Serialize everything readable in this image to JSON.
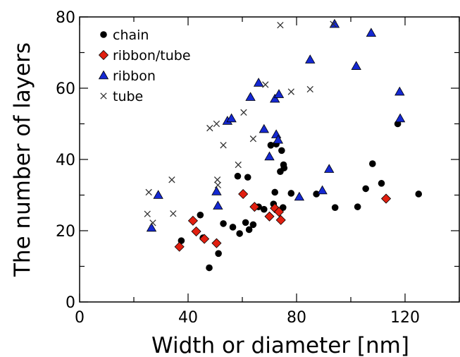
{
  "chart_data": {
    "type": "scatter",
    "xlabel": "Width or diameter [nm]",
    "ylabel": "The number of layers",
    "xlim": [
      0,
      140
    ],
    "ylim": [
      0,
      80
    ],
    "xticks": [
      0,
      40,
      80,
      120
    ],
    "yticks": [
      0,
      20,
      40,
      60,
      80
    ],
    "x_minor_step": 20,
    "y_minor_step": 10,
    "grid": false,
    "legend_position": "top-left",
    "series": [
      {
        "name": "chain",
        "marker": "circle",
        "color": "#000000",
        "points": [
          [
            37.5,
            17.2
          ],
          [
            44.5,
            24.4
          ],
          [
            45.5,
            18.0
          ],
          [
            47.8,
            9.6
          ],
          [
            51.2,
            13.6
          ],
          [
            53.0,
            22.0
          ],
          [
            56.5,
            21.0
          ],
          [
            59.0,
            19.2
          ],
          [
            58.3,
            35.3
          ],
          [
            61.2,
            22.3
          ],
          [
            62.0,
            35.0
          ],
          [
            62.5,
            20.3
          ],
          [
            64.0,
            21.7
          ],
          [
            66.0,
            26.7
          ],
          [
            68.0,
            26.0
          ],
          [
            71.5,
            27.5
          ],
          [
            72.0,
            30.8
          ],
          [
            70.5,
            44.0
          ],
          [
            72.5,
            44.3
          ],
          [
            74.0,
            36.6
          ],
          [
            74.5,
            42.5
          ],
          [
            75.2,
            38.5
          ],
          [
            75.4,
            37.6
          ],
          [
            75.0,
            26.5
          ],
          [
            78.0,
            30.5
          ],
          [
            87.3,
            30.3
          ],
          [
            94.2,
            26.5
          ],
          [
            102.5,
            26.7
          ],
          [
            105.5,
            31.8
          ],
          [
            108.0,
            38.8
          ],
          [
            111.3,
            33.3
          ],
          [
            117.3,
            50.0
          ],
          [
            125.0,
            30.3
          ]
        ]
      },
      {
        "name": "ribbon/tube",
        "marker": "diamond",
        "color": "#e11f10",
        "points": [
          [
            36.8,
            15.5
          ],
          [
            41.8,
            22.8
          ],
          [
            43.0,
            19.8
          ],
          [
            46.0,
            17.7
          ],
          [
            50.5,
            16.5
          ],
          [
            60.3,
            30.3
          ],
          [
            64.5,
            26.7
          ],
          [
            70.0,
            24.0
          ],
          [
            72.0,
            26.3
          ],
          [
            73.5,
            25.3
          ],
          [
            74.2,
            23.0
          ],
          [
            113.0,
            29.0
          ]
        ]
      },
      {
        "name": "ribbon",
        "marker": "triangle",
        "color": "#1428d2",
        "points": [
          [
            26.5,
            20.8
          ],
          [
            29.0,
            30.0
          ],
          [
            50.5,
            31.0
          ],
          [
            51.0,
            27.0
          ],
          [
            54.5,
            50.8
          ],
          [
            56.0,
            51.5
          ],
          [
            63.0,
            57.5
          ],
          [
            66.0,
            61.5
          ],
          [
            68.0,
            48.5
          ],
          [
            70.0,
            40.8
          ],
          [
            72.0,
            57.0
          ],
          [
            72.5,
            47.0
          ],
          [
            73.2,
            45.5
          ],
          [
            73.5,
            58.3
          ],
          [
            81.0,
            29.5
          ],
          [
            85.0,
            68.0
          ],
          [
            89.5,
            31.3
          ],
          [
            92.0,
            37.3
          ],
          [
            94.0,
            78.0
          ],
          [
            102.0,
            66.2
          ],
          [
            107.5,
            75.5
          ],
          [
            118.0,
            59.0
          ],
          [
            118.2,
            51.5
          ]
        ]
      },
      {
        "name": "tube",
        "marker": "x",
        "color": "#333333",
        "points": [
          [
            25.0,
            24.7
          ],
          [
            25.5,
            30.8
          ],
          [
            27.0,
            22.2
          ],
          [
            34.0,
            34.3
          ],
          [
            34.5,
            24.8
          ],
          [
            48.0,
            48.8
          ],
          [
            50.5,
            50.0
          ],
          [
            50.8,
            34.3
          ],
          [
            51.0,
            32.8
          ],
          [
            53.0,
            44.0
          ],
          [
            58.5,
            38.5
          ],
          [
            60.5,
            53.2
          ],
          [
            64.0,
            45.8
          ],
          [
            68.5,
            61.0
          ],
          [
            74.0,
            77.7
          ],
          [
            78.0,
            59.0
          ],
          [
            85.0,
            59.7
          ],
          [
            93.5,
            78.0
          ]
        ]
      }
    ]
  }
}
